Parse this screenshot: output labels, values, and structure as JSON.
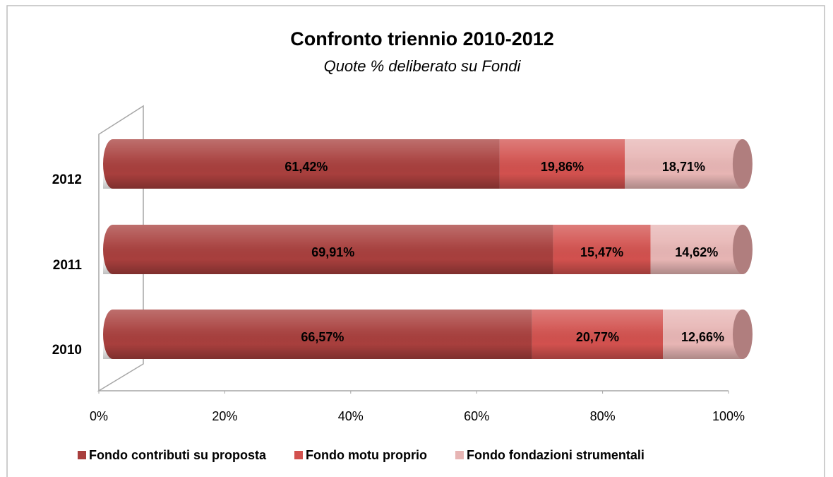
{
  "chart_data": {
    "type": "bar",
    "orientation": "horizontal",
    "stacked": true,
    "title": "Confronto triennio 2010-2012",
    "subtitle": "Quote % deliberato su Fondi",
    "categories": [
      "2012",
      "2011",
      "2010"
    ],
    "series": [
      {
        "name": "Fondo contributi su proposta",
        "color": "#a83f3d",
        "values": [
          61.42,
          69.91,
          66.57
        ],
        "value_labels": [
          "61,42%",
          "69,91%",
          "66,57%"
        ]
      },
      {
        "name": "Fondo motu proprio",
        "color": "#d2514e",
        "values": [
          19.86,
          15.47,
          20.77
        ],
        "value_labels": [
          "19,86%",
          "15,47%",
          "20,77%"
        ]
      },
      {
        "name": "Fondo fondazioni strumentali",
        "color": "#e7b5b4",
        "values": [
          18.71,
          14.62,
          12.66
        ],
        "value_labels": [
          "18,71%",
          "14,62%",
          "12,66%"
        ]
      }
    ],
    "xlim": [
      0,
      100
    ],
    "xticks": [
      {
        "value": 0,
        "label": "0%"
      },
      {
        "value": 20,
        "label": "20%"
      },
      {
        "value": 40,
        "label": "40%"
      },
      {
        "value": 60,
        "label": "60%"
      },
      {
        "value": 80,
        "label": "80%"
      },
      {
        "value": 100,
        "label": "100%"
      }
    ],
    "legend": "bottom"
  }
}
